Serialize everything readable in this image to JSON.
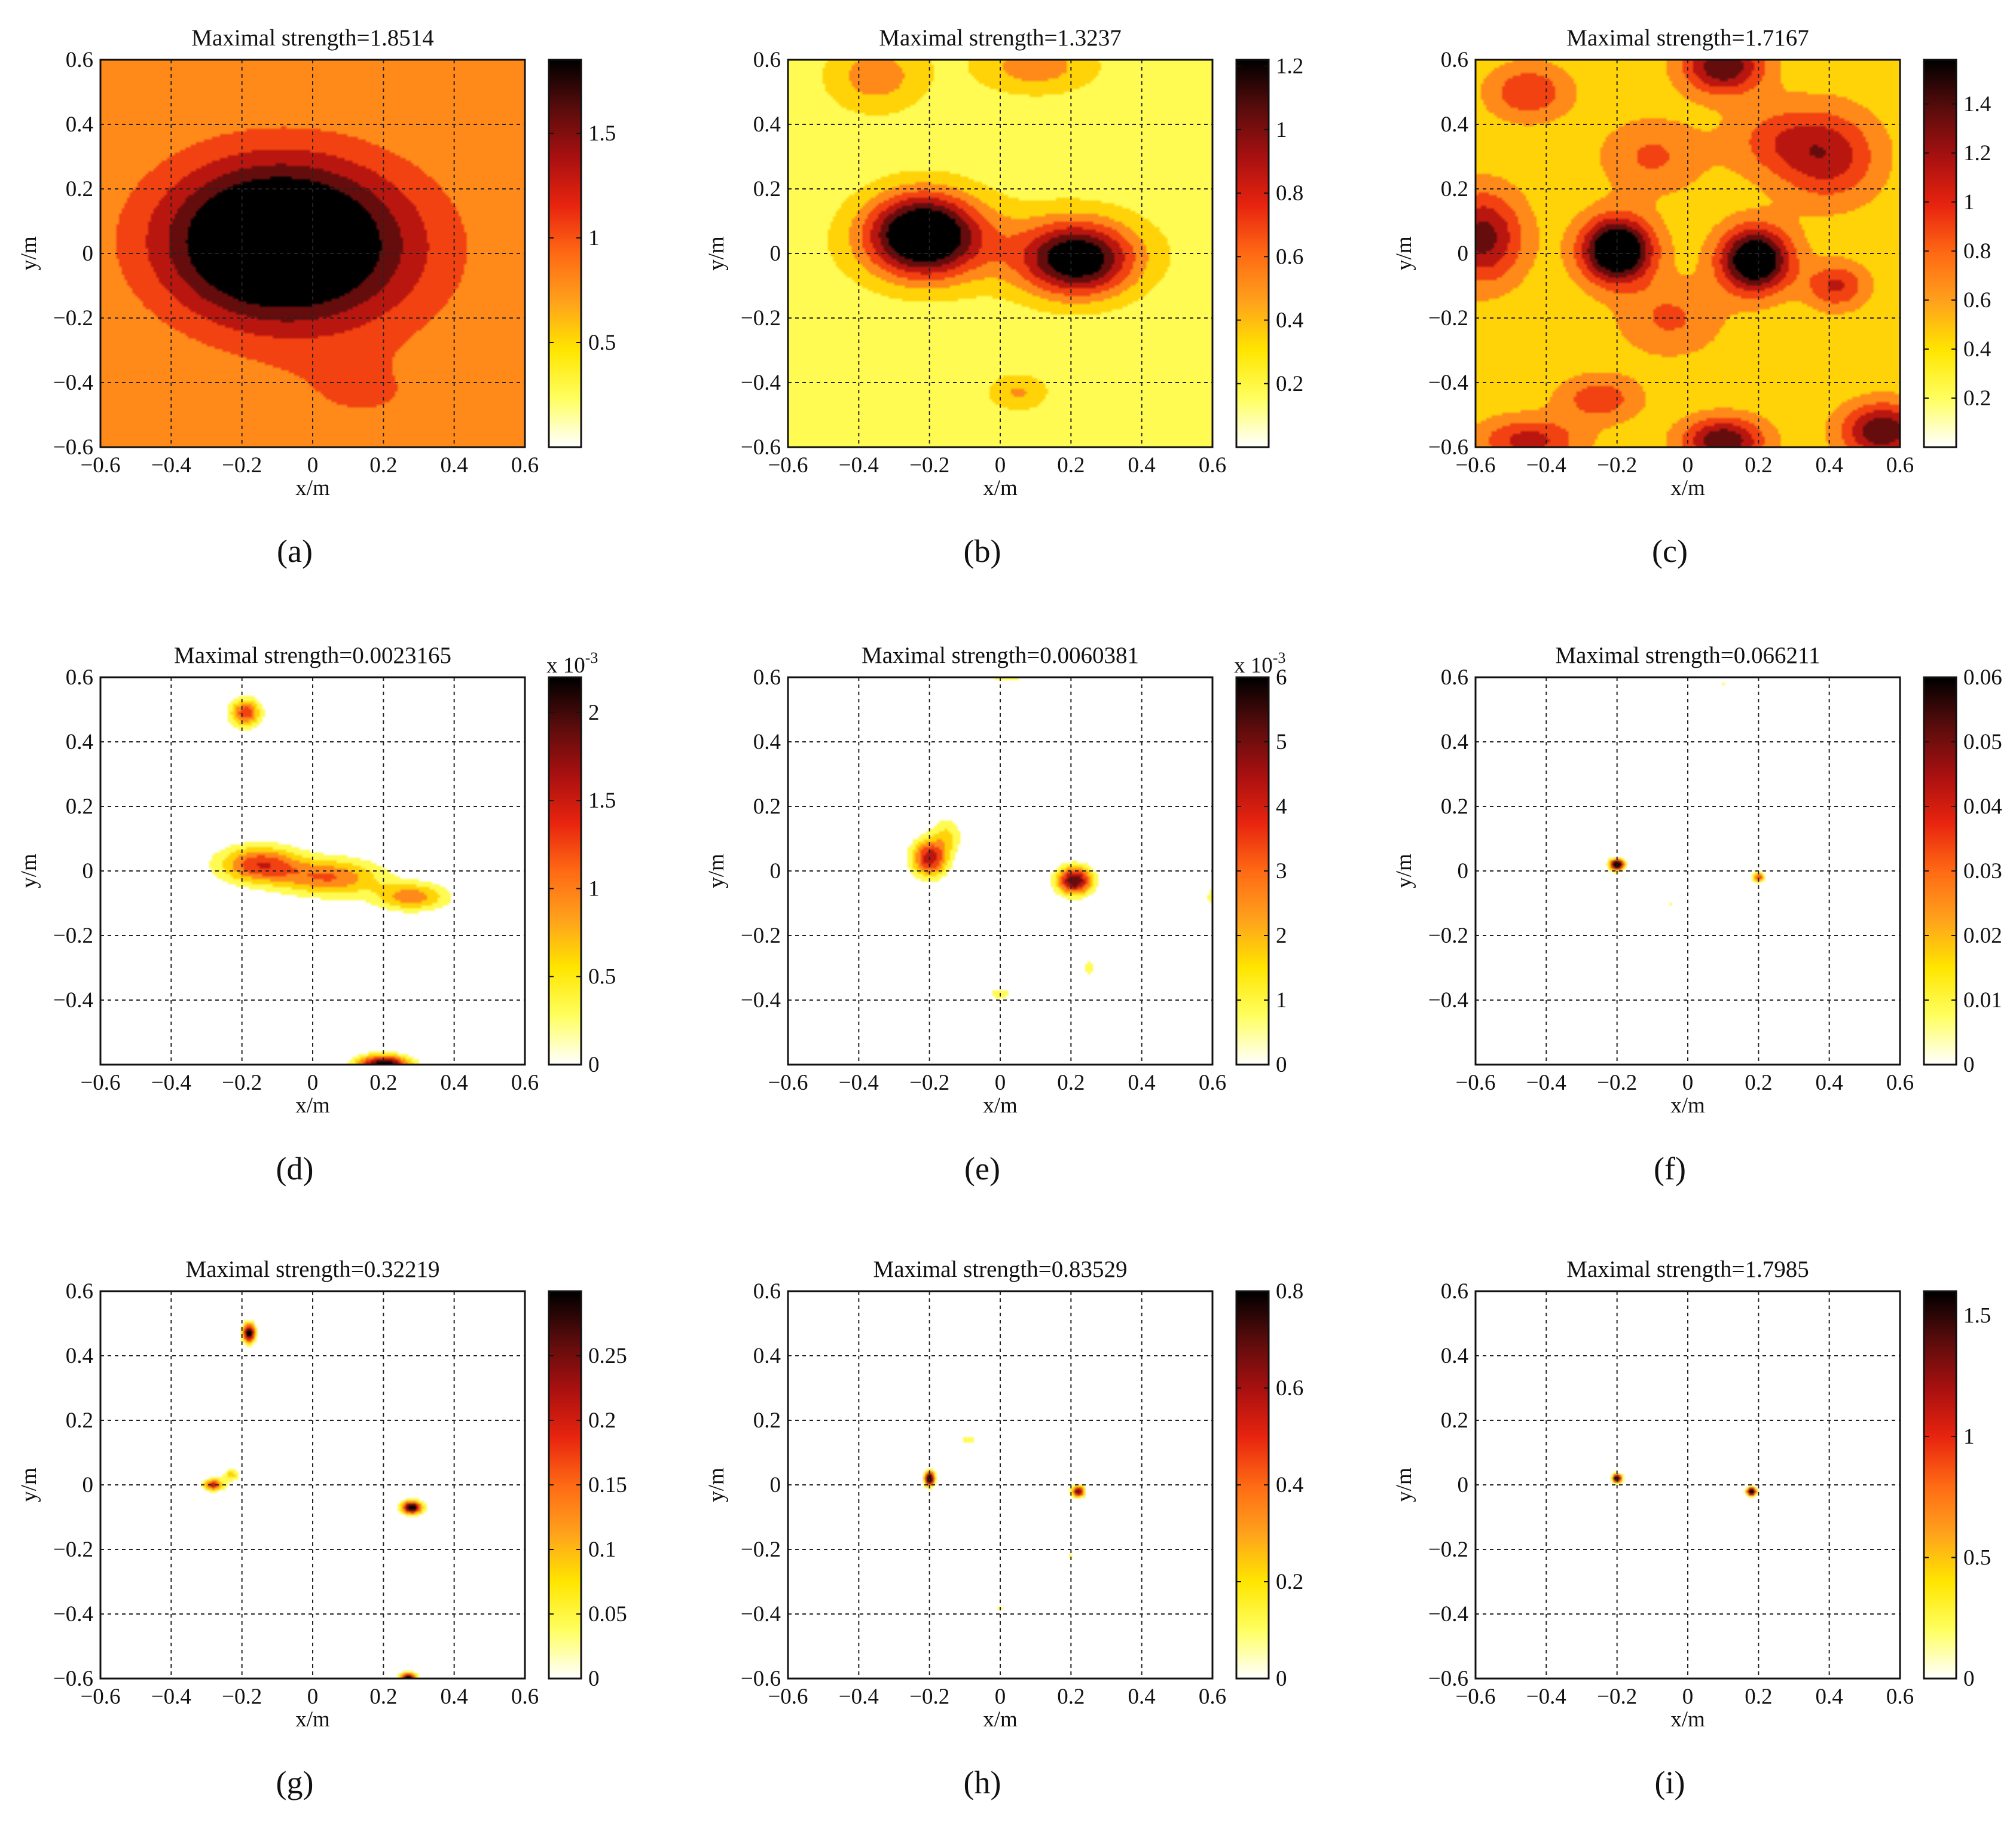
{
  "figure": {
    "panels": [
      {
        "caption": "(a)",
        "title": "Maximal strength=1.8514"
      },
      {
        "caption": "(b)",
        "title": "Maximal strength=1.3237"
      },
      {
        "caption": "(c)",
        "title": "Maximal strength=1.7167"
      },
      {
        "caption": "(d)",
        "title": "Maximal strength=0.0023165"
      },
      {
        "caption": "(e)",
        "title": "Maximal strength=0.0060381"
      },
      {
        "caption": "(f)",
        "title": "Maximal strength=0.066211"
      },
      {
        "caption": "(g)",
        "title": "Maximal strength=0.32219"
      },
      {
        "caption": "(h)",
        "title": "Maximal strength=0.83529"
      },
      {
        "caption": "(i)",
        "title": "Maximal strength=1.7985"
      }
    ]
  },
  "colors": {
    "colormap": [
      "#ffffff",
      "#ffff60",
      "#ffe600",
      "#ffa21c",
      "#ff6a14",
      "#e8240f",
      "#a81010",
      "#5a0c0c",
      "#000000"
    ],
    "grid": "#222222",
    "text": "#111111"
  },
  "chart_data": [
    {
      "type": "heatmap",
      "title": "Maximal strength=1.8514",
      "xlabel": "x/m",
      "ylabel": "y/m",
      "xlim": [
        -0.6,
        0.6
      ],
      "ylim": [
        -0.6,
        0.6
      ],
      "max": 1.8514,
      "colorbar_max": 1.8514,
      "x_ticks": [
        "-0.6",
        "-0.4",
        "-0.2",
        "0",
        "0.2",
        "0.4",
        "0.6"
      ],
      "y_ticks": [
        "0.6",
        "0.4",
        "0.2",
        "0",
        "-0.2",
        "-0.4",
        "-0.6"
      ],
      "colorbar_ticks": [
        {
          "label": "1.5",
          "value": 1.5
        },
        {
          "label": "1",
          "value": 1.0
        },
        {
          "label": "0.5",
          "value": 0.5
        }
      ],
      "colorbar_exponent": "",
      "background": 0.38,
      "sources": [
        {
          "x": -0.12,
          "y": 0.04,
          "amp": 1.5,
          "sx": 0.22,
          "sy": 0.17
        },
        {
          "x": 0.1,
          "y": 0.0,
          "amp": 0.4,
          "sx": 0.25,
          "sy": 0.2
        },
        {
          "x": 0.15,
          "y": -0.45,
          "amp": 0.2,
          "sx": 0.2,
          "sy": 0.1
        }
      ]
    },
    {
      "type": "heatmap",
      "title": "Maximal strength=1.3237",
      "xlabel": "x/m",
      "ylabel": "y/m",
      "xlim": [
        -0.6,
        0.6
      ],
      "ylim": [
        -0.6,
        0.6
      ],
      "max": 1.3237,
      "colorbar_max": 1.22,
      "x_ticks": [
        "-0.6",
        "-0.4",
        "-0.2",
        "0",
        "0.2",
        "0.4",
        "0.6"
      ],
      "y_ticks": [
        "0.6",
        "0.4",
        "0.2",
        "0",
        "-0.2",
        "-0.4",
        "-0.6"
      ],
      "colorbar_ticks": [
        {
          "label": "1.2",
          "value": 1.2
        },
        {
          "label": "1",
          "value": 1.0
        },
        {
          "label": "0.8",
          "value": 0.8
        },
        {
          "label": "0.6",
          "value": 0.6
        },
        {
          "label": "0.4",
          "value": 0.4
        },
        {
          "label": "0.2",
          "value": 0.2
        }
      ],
      "colorbar_exponent": "",
      "background": 0.16,
      "sources": [
        {
          "x": -0.22,
          "y": 0.06,
          "amp": 1.15,
          "sx": 0.11,
          "sy": 0.09
        },
        {
          "x": 0.22,
          "y": -0.02,
          "amp": 0.95,
          "sx": 0.11,
          "sy": 0.08
        },
        {
          "x": 0.0,
          "y": 0.02,
          "amp": 0.2,
          "sx": 0.3,
          "sy": 0.1
        },
        {
          "x": -0.35,
          "y": 0.55,
          "amp": 0.35,
          "sx": 0.1,
          "sy": 0.08
        },
        {
          "x": 0.1,
          "y": 0.58,
          "amp": 0.35,
          "sx": 0.12,
          "sy": 0.06
        },
        {
          "x": 0.05,
          "y": -0.43,
          "amp": 0.28,
          "sx": 0.06,
          "sy": 0.04
        }
      ]
    },
    {
      "type": "heatmap",
      "title": "Maximal strength=1.7167",
      "xlabel": "x/m",
      "ylabel": "y/m",
      "xlim": [
        -0.6,
        0.6
      ],
      "ylim": [
        -0.6,
        0.6
      ],
      "max": 1.7167,
      "colorbar_max": 1.58,
      "x_ticks": [
        "-0.6",
        "-0.4",
        "-0.2",
        "0",
        "0.2",
        "0.4",
        "0.6"
      ],
      "y_ticks": [
        "0.6",
        "0.4",
        "0.2",
        "0",
        "-0.2",
        "-0.4",
        "-0.6"
      ],
      "colorbar_ticks": [
        {
          "label": "1.4",
          "value": 1.4
        },
        {
          "label": "1.2",
          "value": 1.2
        },
        {
          "label": "1",
          "value": 1.0
        },
        {
          "label": "0.8",
          "value": 0.8
        },
        {
          "label": "0.6",
          "value": 0.6
        },
        {
          "label": "0.4",
          "value": 0.4
        },
        {
          "label": "0.2",
          "value": 0.2
        }
      ],
      "colorbar_exponent": "",
      "background": 0.3,
      "sources": [
        {
          "x": -0.2,
          "y": 0.01,
          "amp": 1.4,
          "sx": 0.07,
          "sy": 0.07
        },
        {
          "x": 0.19,
          "y": -0.02,
          "amp": 1.3,
          "sx": 0.07,
          "sy": 0.07
        },
        {
          "x": -0.58,
          "y": 0.05,
          "amp": 0.8,
          "sx": 0.08,
          "sy": 0.1
        },
        {
          "x": 0.1,
          "y": 0.58,
          "amp": 0.9,
          "sx": 0.08,
          "sy": 0.06
        },
        {
          "x": 0.4,
          "y": 0.3,
          "amp": 0.6,
          "sx": 0.1,
          "sy": 0.1
        },
        {
          "x": 0.55,
          "y": -0.55,
          "amp": 0.9,
          "sx": 0.08,
          "sy": 0.06
        },
        {
          "x": 0.1,
          "y": -0.58,
          "amp": 0.9,
          "sx": 0.08,
          "sy": 0.05
        },
        {
          "x": -0.45,
          "y": -0.58,
          "amp": 0.6,
          "sx": 0.1,
          "sy": 0.05
        },
        {
          "x": -0.25,
          "y": -0.45,
          "amp": 0.45,
          "sx": 0.08,
          "sy": 0.05
        },
        {
          "x": 0.42,
          "y": -0.1,
          "amp": 0.55,
          "sx": 0.06,
          "sy": 0.05
        },
        {
          "x": -0.45,
          "y": 0.5,
          "amp": 0.5,
          "sx": 0.08,
          "sy": 0.06
        },
        {
          "x": -0.1,
          "y": 0.3,
          "amp": 0.35,
          "sx": 0.1,
          "sy": 0.08
        },
        {
          "x": 0.25,
          "y": 0.35,
          "amp": 0.35,
          "sx": 0.1,
          "sy": 0.08
        },
        {
          "x": -0.05,
          "y": -0.2,
          "amp": 0.35,
          "sx": 0.1,
          "sy": 0.08
        }
      ]
    },
    {
      "type": "heatmap",
      "title": "Maximal strength=0.0023165",
      "xlabel": "x/m",
      "ylabel": "y/m",
      "xlim": [
        -0.6,
        0.6
      ],
      "ylim": [
        -0.6,
        0.6
      ],
      "max": 0.0023165,
      "colorbar_max": 0.0022,
      "x_ticks": [
        "-0.6",
        "-0.4",
        "-0.2",
        "0",
        "0.2",
        "0.4",
        "0.6"
      ],
      "y_ticks": [
        "0.6",
        "0.4",
        "0.2",
        "0",
        "-0.2",
        "-0.4"
      ],
      "colorbar_ticks": [
        {
          "label": "2",
          "value": 0.002
        },
        {
          "label": "1.5",
          "value": 0.0015
        },
        {
          "label": "1",
          "value": 0.001
        },
        {
          "label": "0.5",
          "value": 0.0005
        },
        {
          "label": "0",
          "value": 0.0
        }
      ],
      "colorbar_exponent": "x 10",
      "colorbar_exponent_sup": "-3",
      "background": 0.0,
      "sources": [
        {
          "x": -0.15,
          "y": 0.02,
          "amp": 0.0013,
          "sx": 0.08,
          "sy": 0.04
        },
        {
          "x": 0.05,
          "y": -0.02,
          "amp": 0.0011,
          "sx": 0.1,
          "sy": 0.04
        },
        {
          "x": 0.28,
          "y": -0.08,
          "amp": 0.001,
          "sx": 0.07,
          "sy": 0.03
        },
        {
          "x": -0.19,
          "y": 0.49,
          "amp": 0.0013,
          "sx": 0.03,
          "sy": 0.03
        },
        {
          "x": 0.2,
          "y": -0.6,
          "amp": 0.0022,
          "sx": 0.05,
          "sy": 0.02
        }
      ]
    },
    {
      "type": "heatmap",
      "title": "Maximal strength=0.0060381",
      "xlabel": "x/m",
      "ylabel": "y/m",
      "xlim": [
        -0.6,
        0.6
      ],
      "ylim": [
        -0.6,
        0.6
      ],
      "max": 0.0060381,
      "colorbar_max": 0.006,
      "x_ticks": [
        "-0.6",
        "-0.4",
        "-0.2",
        "0",
        "0.2",
        "0.4",
        "0.6"
      ],
      "y_ticks": [
        "0.6",
        "0.4",
        "0.2",
        "0",
        "-0.2",
        "-0.4"
      ],
      "colorbar_ticks": [
        {
          "label": "6",
          "value": 0.006
        },
        {
          "label": "5",
          "value": 0.005
        },
        {
          "label": "4",
          "value": 0.004
        },
        {
          "label": "3",
          "value": 0.003
        },
        {
          "label": "2",
          "value": 0.002
        },
        {
          "label": "1",
          "value": 0.001
        },
        {
          "label": "0",
          "value": 0.0
        }
      ],
      "colorbar_exponent": "x 10",
      "colorbar_exponent_sup": "-3",
      "background": 0.0,
      "sources": [
        {
          "x": -0.2,
          "y": 0.04,
          "amp": 0.0042,
          "sx": 0.035,
          "sy": 0.04
        },
        {
          "x": -0.15,
          "y": 0.11,
          "amp": 0.0015,
          "sx": 0.03,
          "sy": 0.04
        },
        {
          "x": 0.21,
          "y": -0.03,
          "amp": 0.0052,
          "sx": 0.035,
          "sy": 0.03
        },
        {
          "x": 0.0,
          "y": -0.38,
          "amp": 0.0015,
          "sx": 0.02,
          "sy": 0.012
        },
        {
          "x": 0.25,
          "y": -0.3,
          "amp": 0.0012,
          "sx": 0.01,
          "sy": 0.02
        },
        {
          "x": 0.6,
          "y": -0.08,
          "amp": 0.0015,
          "sx": 0.01,
          "sy": 0.02
        },
        {
          "x": 0.02,
          "y": 0.6,
          "amp": 0.0015,
          "sx": 0.03,
          "sy": 0.01
        }
      ]
    },
    {
      "type": "heatmap",
      "title": "Maximal strength=0.066211",
      "xlabel": "x/m",
      "ylabel": "y/m",
      "xlim": [
        -0.6,
        0.6
      ],
      "ylim": [
        -0.6,
        0.6
      ],
      "max": 0.066211,
      "colorbar_max": 0.06,
      "x_ticks": [
        "-0.6",
        "-0.4",
        "-0.2",
        "0",
        "0.2",
        "0.4",
        "0.6"
      ],
      "y_ticks": [
        "0.6",
        "0.4",
        "0.2",
        "0",
        "-0.2",
        "-0.4"
      ],
      "colorbar_ticks": [
        {
          "label": "0.06",
          "value": 0.06
        },
        {
          "label": "0.05",
          "value": 0.05
        },
        {
          "label": "0.04",
          "value": 0.04
        },
        {
          "label": "0.03",
          "value": 0.03
        },
        {
          "label": "0.02",
          "value": 0.02
        },
        {
          "label": "0.01",
          "value": 0.01
        },
        {
          "label": "0",
          "value": 0.0
        }
      ],
      "colorbar_exponent": "",
      "background": 0.0,
      "sources": [
        {
          "x": -0.2,
          "y": 0.02,
          "amp": 0.066,
          "sx": 0.014,
          "sy": 0.012
        },
        {
          "x": 0.2,
          "y": -0.02,
          "amp": 0.035,
          "sx": 0.012,
          "sy": 0.01
        },
        {
          "x": 0.1,
          "y": 0.58,
          "amp": 0.012,
          "sx": 0.006,
          "sy": 0.006
        },
        {
          "x": -0.05,
          "y": -0.1,
          "amp": 0.012,
          "sx": 0.005,
          "sy": 0.005
        }
      ]
    },
    {
      "type": "heatmap",
      "title": "Maximal strength=0.32219",
      "xlabel": "x/m",
      "ylabel": "y/m",
      "xlim": [
        -0.6,
        0.6
      ],
      "ylim": [
        -0.6,
        0.6
      ],
      "max": 0.32219,
      "colorbar_max": 0.3,
      "x_ticks": [
        "-0.6",
        "-0.4",
        "-0.2",
        "0",
        "0.2",
        "0.4",
        "0.6"
      ],
      "y_ticks": [
        "0.6",
        "0.4",
        "0.2",
        "0",
        "-0.2",
        "-0.4",
        "-0.6"
      ],
      "colorbar_ticks": [
        {
          "label": "0.25",
          "value": 0.25
        },
        {
          "label": "0.2",
          "value": 0.2
        },
        {
          "label": "0.15",
          "value": 0.15
        },
        {
          "label": "0.1",
          "value": 0.1
        },
        {
          "label": "0.05",
          "value": 0.05
        },
        {
          "label": "0",
          "value": 0.0
        }
      ],
      "colorbar_exponent": "",
      "background": 0.0,
      "sources": [
        {
          "x": -0.28,
          "y": 0.0,
          "amp": 0.2,
          "sx": 0.02,
          "sy": 0.012
        },
        {
          "x": -0.23,
          "y": 0.03,
          "amp": 0.1,
          "sx": 0.015,
          "sy": 0.012
        },
        {
          "x": -0.18,
          "y": 0.47,
          "amp": 0.3,
          "sx": 0.012,
          "sy": 0.02
        },
        {
          "x": 0.28,
          "y": -0.07,
          "amp": 0.3,
          "sx": 0.02,
          "sy": 0.014
        },
        {
          "x": 0.27,
          "y": -0.6,
          "amp": 0.3,
          "sx": 0.015,
          "sy": 0.012
        }
      ]
    },
    {
      "type": "heatmap",
      "title": "Maximal strength=0.83529",
      "xlabel": "x/m",
      "ylabel": "y/m",
      "xlim": [
        -0.6,
        0.6
      ],
      "ylim": [
        -0.6,
        0.6
      ],
      "max": 0.83529,
      "colorbar_max": 0.8,
      "x_ticks": [
        "-0.6",
        "-0.4",
        "-0.2",
        "0",
        "0.2",
        "0.4",
        "0.6"
      ],
      "y_ticks": [
        "0.6",
        "0.4",
        "0.2",
        "0",
        "-0.2",
        "-0.4",
        "-0.6"
      ],
      "colorbar_ticks": [
        {
          "label": "0.8",
          "value": 0.8
        },
        {
          "label": "0.6",
          "value": 0.6
        },
        {
          "label": "0.4",
          "value": 0.4
        },
        {
          "label": "0.2",
          "value": 0.2
        },
        {
          "label": "0",
          "value": 0.0
        }
      ],
      "colorbar_exponent": "",
      "background": 0.0,
      "sources": [
        {
          "x": -0.2,
          "y": 0.02,
          "amp": 0.83,
          "sx": 0.01,
          "sy": 0.016
        },
        {
          "x": 0.22,
          "y": -0.02,
          "amp": 0.7,
          "sx": 0.012,
          "sy": 0.012
        },
        {
          "x": -0.09,
          "y": 0.14,
          "amp": 0.2,
          "sx": 0.012,
          "sy": 0.007
        },
        {
          "x": 0.0,
          "y": -0.38,
          "amp": 0.15,
          "sx": 0.006,
          "sy": 0.006
        },
        {
          "x": 0.2,
          "y": -0.22,
          "amp": 0.15,
          "sx": 0.004,
          "sy": 0.008
        }
      ]
    },
    {
      "type": "heatmap",
      "title": "Maximal strength=1.7985",
      "xlabel": "x/m",
      "ylabel": "y/m",
      "xlim": [
        -0.6,
        0.6
      ],
      "ylim": [
        -0.6,
        0.6
      ],
      "max": 1.7985,
      "colorbar_max": 1.6,
      "x_ticks": [
        "-0.6",
        "-0.4",
        "-0.2",
        "0",
        "0.2",
        "0.4",
        "0.6"
      ],
      "y_ticks": [
        "0.6",
        "0.4",
        "0.2",
        "0",
        "-0.2",
        "-0.4",
        "-0.6"
      ],
      "colorbar_ticks": [
        {
          "label": "1.5",
          "value": 1.5
        },
        {
          "label": "1",
          "value": 1.0
        },
        {
          "label": "0.5",
          "value": 0.5
        },
        {
          "label": "0",
          "value": 0.0
        }
      ],
      "colorbar_exponent": "",
      "background": 0.0,
      "sources": [
        {
          "x": -0.2,
          "y": 0.02,
          "amp": 1.8,
          "sx": 0.009,
          "sy": 0.009
        },
        {
          "x": 0.18,
          "y": -0.02,
          "amp": 1.8,
          "sx": 0.009,
          "sy": 0.009
        }
      ]
    }
  ]
}
